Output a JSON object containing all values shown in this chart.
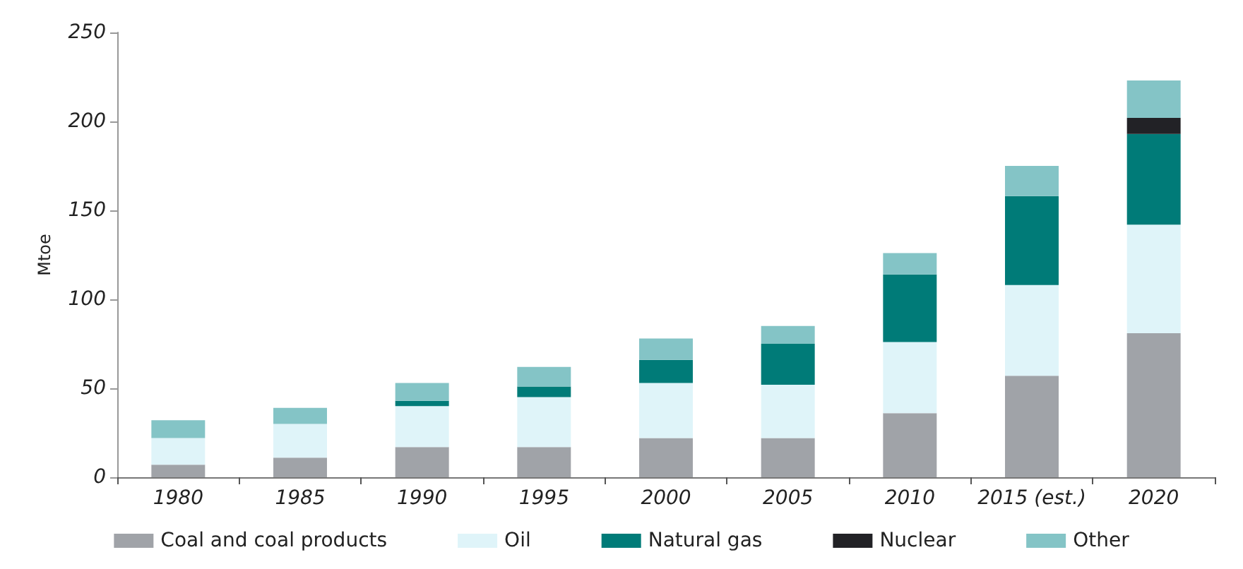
{
  "chart_data": {
    "type": "bar",
    "ylabel": "Mtoe",
    "stacked": true,
    "grid": false,
    "legend": "bottom",
    "categories": [
      "1980",
      "1985",
      "1990",
      "1995",
      "2000",
      "2005",
      "2010",
      "2015 (est.)",
      "2020"
    ],
    "ylim": [
      0,
      250
    ],
    "yticks": [
      0,
      50,
      100,
      150,
      200,
      250
    ],
    "series": [
      {
        "name": "Coal and coal products",
        "color": "#a0a3a8",
        "values": [
          7,
          11,
          17,
          17,
          22,
          22,
          36,
          57,
          81
        ]
      },
      {
        "name": "Oil",
        "color": "#dff4f9",
        "values": [
          15,
          19,
          23,
          28,
          31,
          30,
          40,
          51,
          61
        ]
      },
      {
        "name": "Natural gas",
        "color": "#007b78",
        "values": [
          0,
          0,
          3,
          6,
          13,
          23,
          38,
          50,
          51
        ]
      },
      {
        "name": "Nuclear",
        "color": "#222226",
        "values": [
          0,
          0,
          0,
          0,
          0,
          0,
          0,
          0,
          9
        ]
      },
      {
        "name": "Other",
        "color": "#84c4c6",
        "values": [
          10,
          9,
          10,
          11,
          12,
          10,
          12,
          17,
          21
        ]
      }
    ]
  }
}
